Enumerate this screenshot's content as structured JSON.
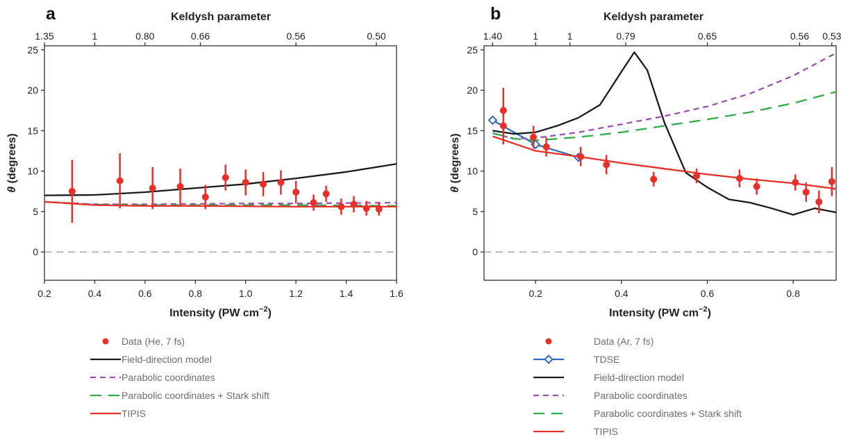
{
  "chart_data": [
    {
      "type": "scatter",
      "panel_label": "a",
      "top_axis_title": "Keldysh parameter",
      "top_ticks": [
        {
          "x": 0.2,
          "label": "1.35"
        },
        {
          "x": 0.4,
          "label": "1"
        },
        {
          "x": 0.6,
          "label": "0.80"
        },
        {
          "x": 0.82,
          "label": "0.66"
        },
        {
          "x": 1.2,
          "label": "0.56"
        },
        {
          "x": 1.52,
          "label": "0.50"
        }
      ],
      "xlabel_main": "Intensity (PW cm",
      "xlabel_sup": "−2",
      "xlabel_close": ")",
      "ylabel_symbol": "θ",
      "ylabel_rest": " (degrees)",
      "xlim": [
        0.2,
        1.6
      ],
      "ylim": [
        -3.5,
        25.5
      ],
      "xticks": [
        0.2,
        0.4,
        0.6,
        0.8,
        1.0,
        1.2,
        1.4,
        1.6
      ],
      "xtick_labels": [
        "0.2",
        "0.4",
        "0.6",
        "0.8",
        "1.0",
        "1.2",
        "1.4",
        "1.6"
      ],
      "yticks": [
        0,
        5,
        10,
        15,
        20,
        25
      ],
      "ytick_labels": [
        "0",
        "5",
        "10",
        "15",
        "20",
        "25"
      ],
      "zero_line": true,
      "grid": false,
      "data": {
        "x": [
          0.31,
          0.5,
          0.63,
          0.74,
          0.84,
          0.92,
          1.0,
          1.07,
          1.14,
          1.2,
          1.27,
          1.32,
          1.38,
          1.43,
          1.48,
          1.53
        ],
        "y": [
          7.5,
          8.8,
          7.9,
          8.1,
          6.8,
          9.2,
          8.6,
          8.4,
          8.6,
          7.4,
          6.1,
          7.2,
          5.6,
          5.9,
          5.4,
          5.3
        ],
        "err": [
          3.9,
          3.4,
          2.6,
          2.2,
          1.5,
          1.6,
          1.6,
          1.5,
          1.5,
          1.4,
          1.0,
          1.0,
          1.0,
          1.0,
          0.9,
          0.8
        ]
      },
      "series": [
        {
          "name": "Field-direction model",
          "style": "solid",
          "color": "#1a1a1a",
          "x": [
            0.2,
            0.4,
            0.6,
            0.8,
            1.0,
            1.2,
            1.4,
            1.6
          ],
          "y": [
            7.0,
            7.05,
            7.4,
            7.9,
            8.4,
            9.1,
            9.9,
            10.9
          ]
        },
        {
          "name": "Parabolic coordinates",
          "style": "dash",
          "color": "#9b4fb0",
          "x": [
            0.2,
            0.4,
            0.6,
            0.8,
            1.0,
            1.2,
            1.4,
            1.6
          ],
          "y": [
            6.2,
            5.9,
            5.9,
            5.95,
            6.0,
            6.0,
            6.05,
            6.1
          ]
        },
        {
          "name": "Parabolic coordinates + Stark shift",
          "style": "longdash",
          "color": "#2eaa48",
          "x": [
            0.2,
            0.4,
            0.6,
            0.8,
            1.0,
            1.2,
            1.4,
            1.6
          ],
          "y": [
            6.2,
            5.85,
            5.8,
            5.8,
            5.8,
            5.8,
            5.75,
            5.7
          ]
        },
        {
          "name": "TIPIS",
          "style": "solid",
          "color": "#e8302b",
          "x": [
            0.2,
            0.4,
            0.6,
            0.8,
            1.0,
            1.2,
            1.4,
            1.6
          ],
          "y": [
            6.2,
            5.8,
            5.7,
            5.7,
            5.65,
            5.6,
            5.6,
            5.6
          ]
        }
      ],
      "legend": [
        {
          "label": "Data (He, 7 fs)",
          "kind": "dot",
          "color": "#e8302b"
        },
        {
          "label": "Field-direction model",
          "kind": "solid",
          "color": "#1a1a1a"
        },
        {
          "label": "Parabolic coordinates",
          "kind": "dash",
          "color": "#9b4fb0"
        },
        {
          "label": "Parabolic coordinates + Stark shift",
          "kind": "longdash",
          "color": "#2eaa48"
        },
        {
          "label": "TIPIS",
          "kind": "solid",
          "color": "#e8302b"
        }
      ]
    },
    {
      "type": "scatter",
      "panel_label": "b",
      "top_axis_title": "Keldysh parameter",
      "top_ticks": [
        {
          "x": 0.1,
          "label": "1.40"
        },
        {
          "x": 0.2,
          "label": "1"
        },
        {
          "x": 0.28,
          "label": "1"
        },
        {
          "x": 0.41,
          "label": "0.79"
        },
        {
          "x": 0.6,
          "label": "0.65"
        },
        {
          "x": 0.815,
          "label": "0.56"
        },
        {
          "x": 0.89,
          "label": "0.53"
        }
      ],
      "xlabel_main": "Intensity (PW cm",
      "xlabel_sup": "−2",
      "xlabel_close": ")",
      "ylabel_symbol": "θ",
      "ylabel_rest": " (degrees)",
      "xlim": [
        0.08,
        0.9
      ],
      "ylim": [
        -3.5,
        25.5
      ],
      "xticks": [
        0.2,
        0.4,
        0.6,
        0.8
      ],
      "xtick_labels": [
        "0.2",
        "0.4",
        "0.6",
        "0.8"
      ],
      "yticks": [
        0,
        5,
        10,
        15,
        20,
        25
      ],
      "ytick_labels": [
        "0",
        "5",
        "10",
        "15",
        "20",
        "25"
      ],
      "zero_line": true,
      "grid": false,
      "data": {
        "x": [
          0.125,
          0.125,
          0.195,
          0.225,
          0.305,
          0.365,
          0.475,
          0.575,
          0.675,
          0.715,
          0.805,
          0.83,
          0.86,
          0.89
        ],
        "y": [
          17.5,
          15.6,
          14.2,
          13.0,
          11.8,
          10.8,
          9.0,
          9.4,
          9.1,
          8.1,
          8.6,
          7.4,
          6.2,
          8.7
        ],
        "err": [
          2.8,
          2.3,
          1.4,
          1.2,
          1.2,
          1.2,
          0.9,
          0.9,
          1.1,
          1.0,
          1.0,
          1.2,
          1.4,
          1.8
        ]
      },
      "series": [
        {
          "name": "TDSE",
          "style": "solid-diamond",
          "color": "#2c6cc4",
          "x": [
            0.1,
            0.2,
            0.3
          ],
          "y": [
            16.3,
            13.3,
            11.7
          ]
        },
        {
          "name": "Field-direction model",
          "style": "solid",
          "color": "#1a1a1a",
          "x": [
            0.1,
            0.15,
            0.2,
            0.25,
            0.3,
            0.35,
            0.4,
            0.43,
            0.46,
            0.5,
            0.55,
            0.6,
            0.65,
            0.7,
            0.75,
            0.8,
            0.85,
            0.9
          ],
          "y": [
            15.0,
            14.6,
            14.8,
            15.6,
            16.6,
            18.2,
            22.3,
            24.7,
            22.5,
            16.0,
            9.8,
            8.0,
            6.5,
            6.1,
            5.4,
            4.6,
            5.4,
            4.9
          ]
        },
        {
          "name": "Parabolic coordinates",
          "style": "dash",
          "color": "#9b4fb0",
          "x": [
            0.1,
            0.15,
            0.2,
            0.3,
            0.4,
            0.5,
            0.6,
            0.7,
            0.8,
            0.9
          ],
          "y": [
            14.7,
            14.0,
            14.1,
            14.8,
            15.8,
            16.8,
            18.0,
            19.6,
            21.8,
            24.6
          ]
        },
        {
          "name": "Parabolic coordinates + Stark shift",
          "style": "longdash",
          "color": "#2eaa48",
          "x": [
            0.1,
            0.15,
            0.2,
            0.3,
            0.4,
            0.5,
            0.6,
            0.7,
            0.8,
            0.9
          ],
          "y": [
            14.7,
            14.0,
            13.8,
            14.2,
            14.8,
            15.6,
            16.4,
            17.3,
            18.4,
            19.8
          ]
        },
        {
          "name": "TIPIS",
          "style": "solid",
          "color": "#e8302b",
          "x": [
            0.1,
            0.2,
            0.3,
            0.4,
            0.5,
            0.6,
            0.7,
            0.8,
            0.9
          ],
          "y": [
            14.3,
            12.5,
            11.8,
            11.0,
            10.3,
            9.6,
            9.0,
            8.5,
            7.8
          ]
        }
      ],
      "legend": [
        {
          "label": "Data (Ar, 7 fs)",
          "kind": "dot",
          "color": "#e8302b"
        },
        {
          "label": "TDSE",
          "kind": "diamond",
          "color": "#2c6cc4"
        },
        {
          "label": "Field-direction model",
          "kind": "solid",
          "color": "#1a1a1a"
        },
        {
          "label": "Parabolic coordinates",
          "kind": "dash",
          "color": "#9b4fb0"
        },
        {
          "label": "Parabolic coordinates + Stark shift",
          "kind": "longdash",
          "color": "#2eaa48"
        },
        {
          "label": "TIPIS",
          "kind": "solid",
          "color": "#e8302b"
        }
      ]
    }
  ]
}
